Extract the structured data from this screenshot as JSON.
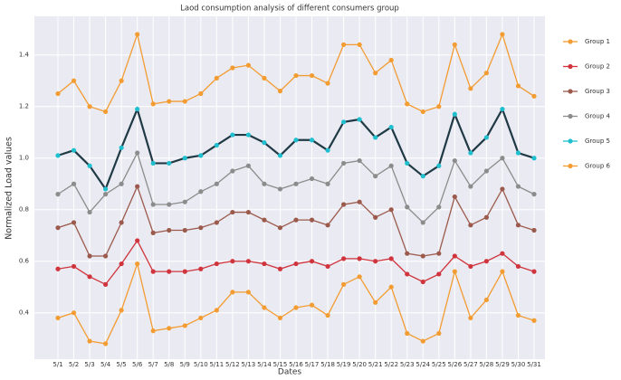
{
  "chart_data": {
    "type": "line",
    "title": "Laod consumption analysis of different consumers group",
    "xlabel": "Dates",
    "ylabel": "Normalized Load values",
    "categories": [
      "5/1",
      "5/2",
      "5/3",
      "5/4",
      "5/5",
      "5/6",
      "5/7",
      "5/8",
      "5/9",
      "5/10",
      "5/11",
      "5/12",
      "5/13",
      "5/14",
      "5/15",
      "5/16",
      "5/17",
      "5/18",
      "5/19",
      "5/20",
      "5/21",
      "5/22",
      "5/23",
      "5/24",
      "5/25",
      "5/26",
      "5/27",
      "5/28",
      "5/29",
      "5/30",
      "5/31"
    ],
    "series": [
      {
        "name": "Group 1",
        "color": "#f39c32",
        "values": [
          1.25,
          1.3,
          1.2,
          1.18,
          1.3,
          1.48,
          1.21,
          1.22,
          1.22,
          1.25,
          1.31,
          1.35,
          1.36,
          1.31,
          1.26,
          1.32,
          1.32,
          1.29,
          1.44,
          1.44,
          1.33,
          1.38,
          1.21,
          1.18,
          1.2,
          1.44,
          1.27,
          1.33,
          1.48,
          1.28,
          1.24
        ]
      },
      {
        "name": "Group 2",
        "color": "#d0343c",
        "values": [
          0.57,
          0.58,
          0.54,
          0.51,
          0.59,
          0.68,
          0.56,
          0.56,
          0.56,
          0.57,
          0.59,
          0.6,
          0.6,
          0.59,
          0.57,
          0.59,
          0.6,
          0.58,
          0.61,
          0.61,
          0.6,
          0.61,
          0.55,
          0.52,
          0.55,
          0.62,
          0.58,
          0.6,
          0.63,
          0.58,
          0.56
        ]
      },
      {
        "name": "Group 3",
        "color": "#9b5a4c",
        "values": [
          0.73,
          0.75,
          0.62,
          0.62,
          0.75,
          0.89,
          0.71,
          0.72,
          0.72,
          0.73,
          0.75,
          0.79,
          0.79,
          0.76,
          0.73,
          0.76,
          0.76,
          0.74,
          0.82,
          0.83,
          0.77,
          0.8,
          0.63,
          0.62,
          0.63,
          0.85,
          0.74,
          0.77,
          0.88,
          0.74,
          0.72
        ]
      },
      {
        "name": "Group 4",
        "color": "#8c8c8c",
        "values": [
          0.86,
          0.9,
          0.79,
          0.86,
          0.9,
          1.02,
          0.82,
          0.82,
          0.83,
          0.87,
          0.9,
          0.95,
          0.97,
          0.9,
          0.88,
          0.9,
          0.92,
          0.9,
          0.98,
          0.99,
          0.93,
          0.97,
          0.81,
          0.75,
          0.81,
          0.99,
          0.89,
          0.95,
          1.0,
          0.89,
          0.86
        ]
      },
      {
        "name": "Group 5",
        "color": "#1fbfcf",
        "line_color": "#203a45",
        "values": [
          1.01,
          1.03,
          0.97,
          0.88,
          1.04,
          1.19,
          0.98,
          0.98,
          1.0,
          1.01,
          1.05,
          1.09,
          1.09,
          1.06,
          1.01,
          1.07,
          1.07,
          1.03,
          1.14,
          1.15,
          1.08,
          1.12,
          0.98,
          0.93,
          0.97,
          1.17,
          1.02,
          1.08,
          1.19,
          1.02,
          1.0
        ]
      },
      {
        "name": "Group 6",
        "color": "#f39c32",
        "values": [
          0.38,
          0.4,
          0.29,
          0.28,
          0.41,
          0.59,
          0.33,
          0.34,
          0.35,
          0.38,
          0.41,
          0.48,
          0.48,
          0.42,
          0.38,
          0.42,
          0.43,
          0.39,
          0.51,
          0.54,
          0.44,
          0.5,
          0.32,
          0.29,
          0.32,
          0.56,
          0.38,
          0.45,
          0.56,
          0.39,
          0.37
        ]
      }
    ],
    "ylim": [
      0.22,
      1.55
    ],
    "yticks": [
      0.4,
      0.6,
      0.8,
      {
        "value": 1,
        "label": "1.0"
      },
      1.2,
      1.4
    ],
    "grid": true,
    "legend": "right"
  }
}
